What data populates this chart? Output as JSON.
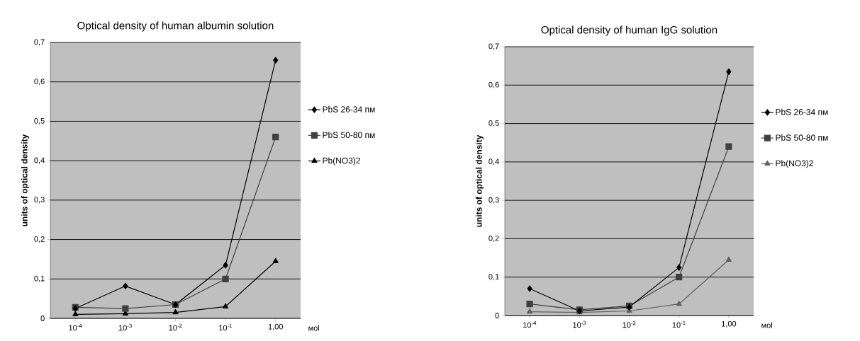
{
  "chart_data": [
    {
      "type": "line",
      "title": "Optical density of human albumin solution",
      "xlabel": "моl",
      "ylabel": "units of optical density",
      "categories": [
        "10$^{-4}$",
        "10$^{-3}$",
        "10$^{-2}$",
        "10$^{-1}$",
        "1,00"
      ],
      "ylim": [
        0,
        0.7
      ],
      "yticks": [
        {
          "value": 0,
          "label": "0"
        },
        {
          "value": 0.1,
          "label": "0,1"
        },
        {
          "value": 0.2,
          "label": "0,2"
        },
        {
          "value": 0.3,
          "label": "0,3"
        },
        {
          "value": 0.4,
          "label": "0,4"
        },
        {
          "value": 0.5,
          "label": "0,5"
        },
        {
          "value": 0.6,
          "label": "0,6"
        },
        {
          "value": 0.7,
          "label": "0,7"
        }
      ],
      "grid": "y",
      "legend": "right",
      "series": [
        {
          "name": "PbS 26-34 пм",
          "color": "#000000",
          "marker": "diamond",
          "values": [
            0.025,
            0.082,
            0.035,
            0.135,
            0.655
          ]
        },
        {
          "name": "PbS 50-80 пм",
          "color": "#404040",
          "marker": "square",
          "values": [
            0.028,
            0.025,
            0.035,
            0.1,
            0.46
          ]
        },
        {
          "name": "Pb(NO3)2",
          "color": "#000000",
          "marker": "triangle",
          "values": [
            0.01,
            0.012,
            0.015,
            0.03,
            0.145
          ]
        }
      ]
    },
    {
      "type": "line",
      "title": "Optical density of human IgG solution",
      "xlabel": "моl",
      "ylabel": "units of optical density",
      "categories": [
        "10$^{-4}$",
        "10$^{-3}$",
        "10$^{-2}$",
        "10$^{-1}$",
        "1,00"
      ],
      "ylim": [
        0,
        0.7
      ],
      "yticks": [
        {
          "value": 0,
          "label": "0"
        },
        {
          "value": 0.1,
          "label": "0,1"
        },
        {
          "value": 0.2,
          "label": "0,2"
        },
        {
          "value": 0.3,
          "label": "0,3"
        },
        {
          "value": 0.4,
          "label": "0,4"
        },
        {
          "value": 0.5,
          "label": "0,5"
        },
        {
          "value": 0.6,
          "label": "0,6"
        },
        {
          "value": 0.7,
          "label": "0,7"
        }
      ],
      "grid": "y",
      "legend": "right",
      "series": [
        {
          "name": "PbS 26-34 пм",
          "color": "#000000",
          "marker": "diamond",
          "values": [
            0.07,
            0.012,
            0.022,
            0.125,
            0.635
          ]
        },
        {
          "name": "PbS 50-80 пм",
          "color": "#404040",
          "marker": "square",
          "values": [
            0.03,
            0.015,
            0.025,
            0.1,
            0.44
          ]
        },
        {
          "name": "Pb(NO3)2",
          "color": "#606060",
          "marker": "triangle",
          "values": [
            0.01,
            0.008,
            0.012,
            0.03,
            0.145
          ]
        }
      ]
    }
  ]
}
